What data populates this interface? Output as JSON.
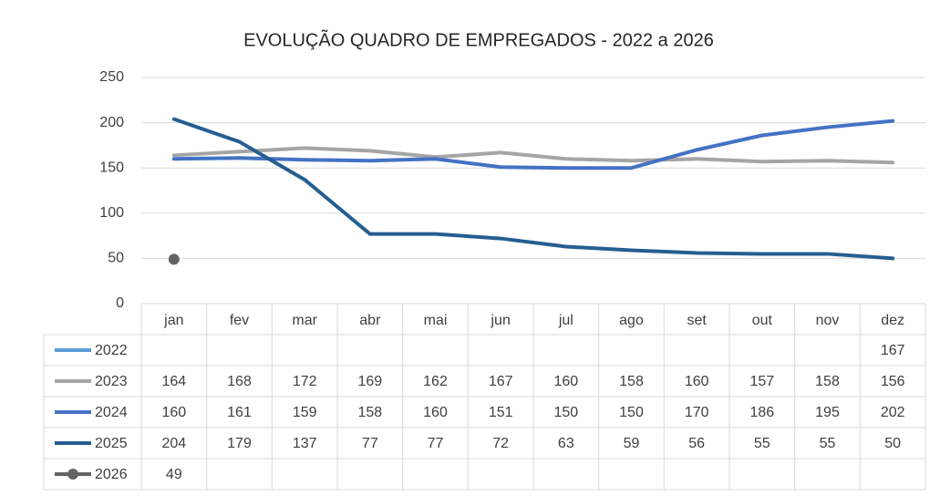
{
  "chart_data": {
    "type": "line",
    "title": "EVOLUÇÃO QUADRO DE EMPREGADOS - 2022 a 2026",
    "categories": [
      "jan",
      "fev",
      "mar",
      "abr",
      "mai",
      "jun",
      "jul",
      "ago",
      "set",
      "out",
      "nov",
      "dez"
    ],
    "series": [
      {
        "name": "2022",
        "color": "#5b9bd5",
        "marker": false,
        "values": [
          null,
          null,
          null,
          null,
          null,
          null,
          null,
          null,
          null,
          null,
          null,
          167
        ]
      },
      {
        "name": "2023",
        "color": "#a5a5a5",
        "marker": false,
        "values": [
          164,
          168,
          172,
          169,
          162,
          167,
          160,
          158,
          160,
          157,
          158,
          156
        ]
      },
      {
        "name": "2024",
        "color": "#4472c4",
        "marker": false,
        "values": [
          160,
          161,
          159,
          158,
          160,
          151,
          150,
          150,
          170,
          186,
          195,
          202
        ]
      },
      {
        "name": "2025",
        "color": "#255e91",
        "marker": false,
        "values": [
          204,
          179,
          137,
          77,
          77,
          72,
          63,
          59,
          56,
          55,
          55,
          50
        ]
      },
      {
        "name": "2026",
        "color": "#636363",
        "marker": true,
        "values": [
          49,
          null,
          null,
          null,
          null,
          null,
          null,
          null,
          null,
          null,
          null,
          null
        ]
      }
    ],
    "ylim": [
      0,
      250
    ],
    "yticks": [
      0,
      50,
      100,
      150,
      200,
      250
    ],
    "grid": true,
    "data_table": true
  }
}
